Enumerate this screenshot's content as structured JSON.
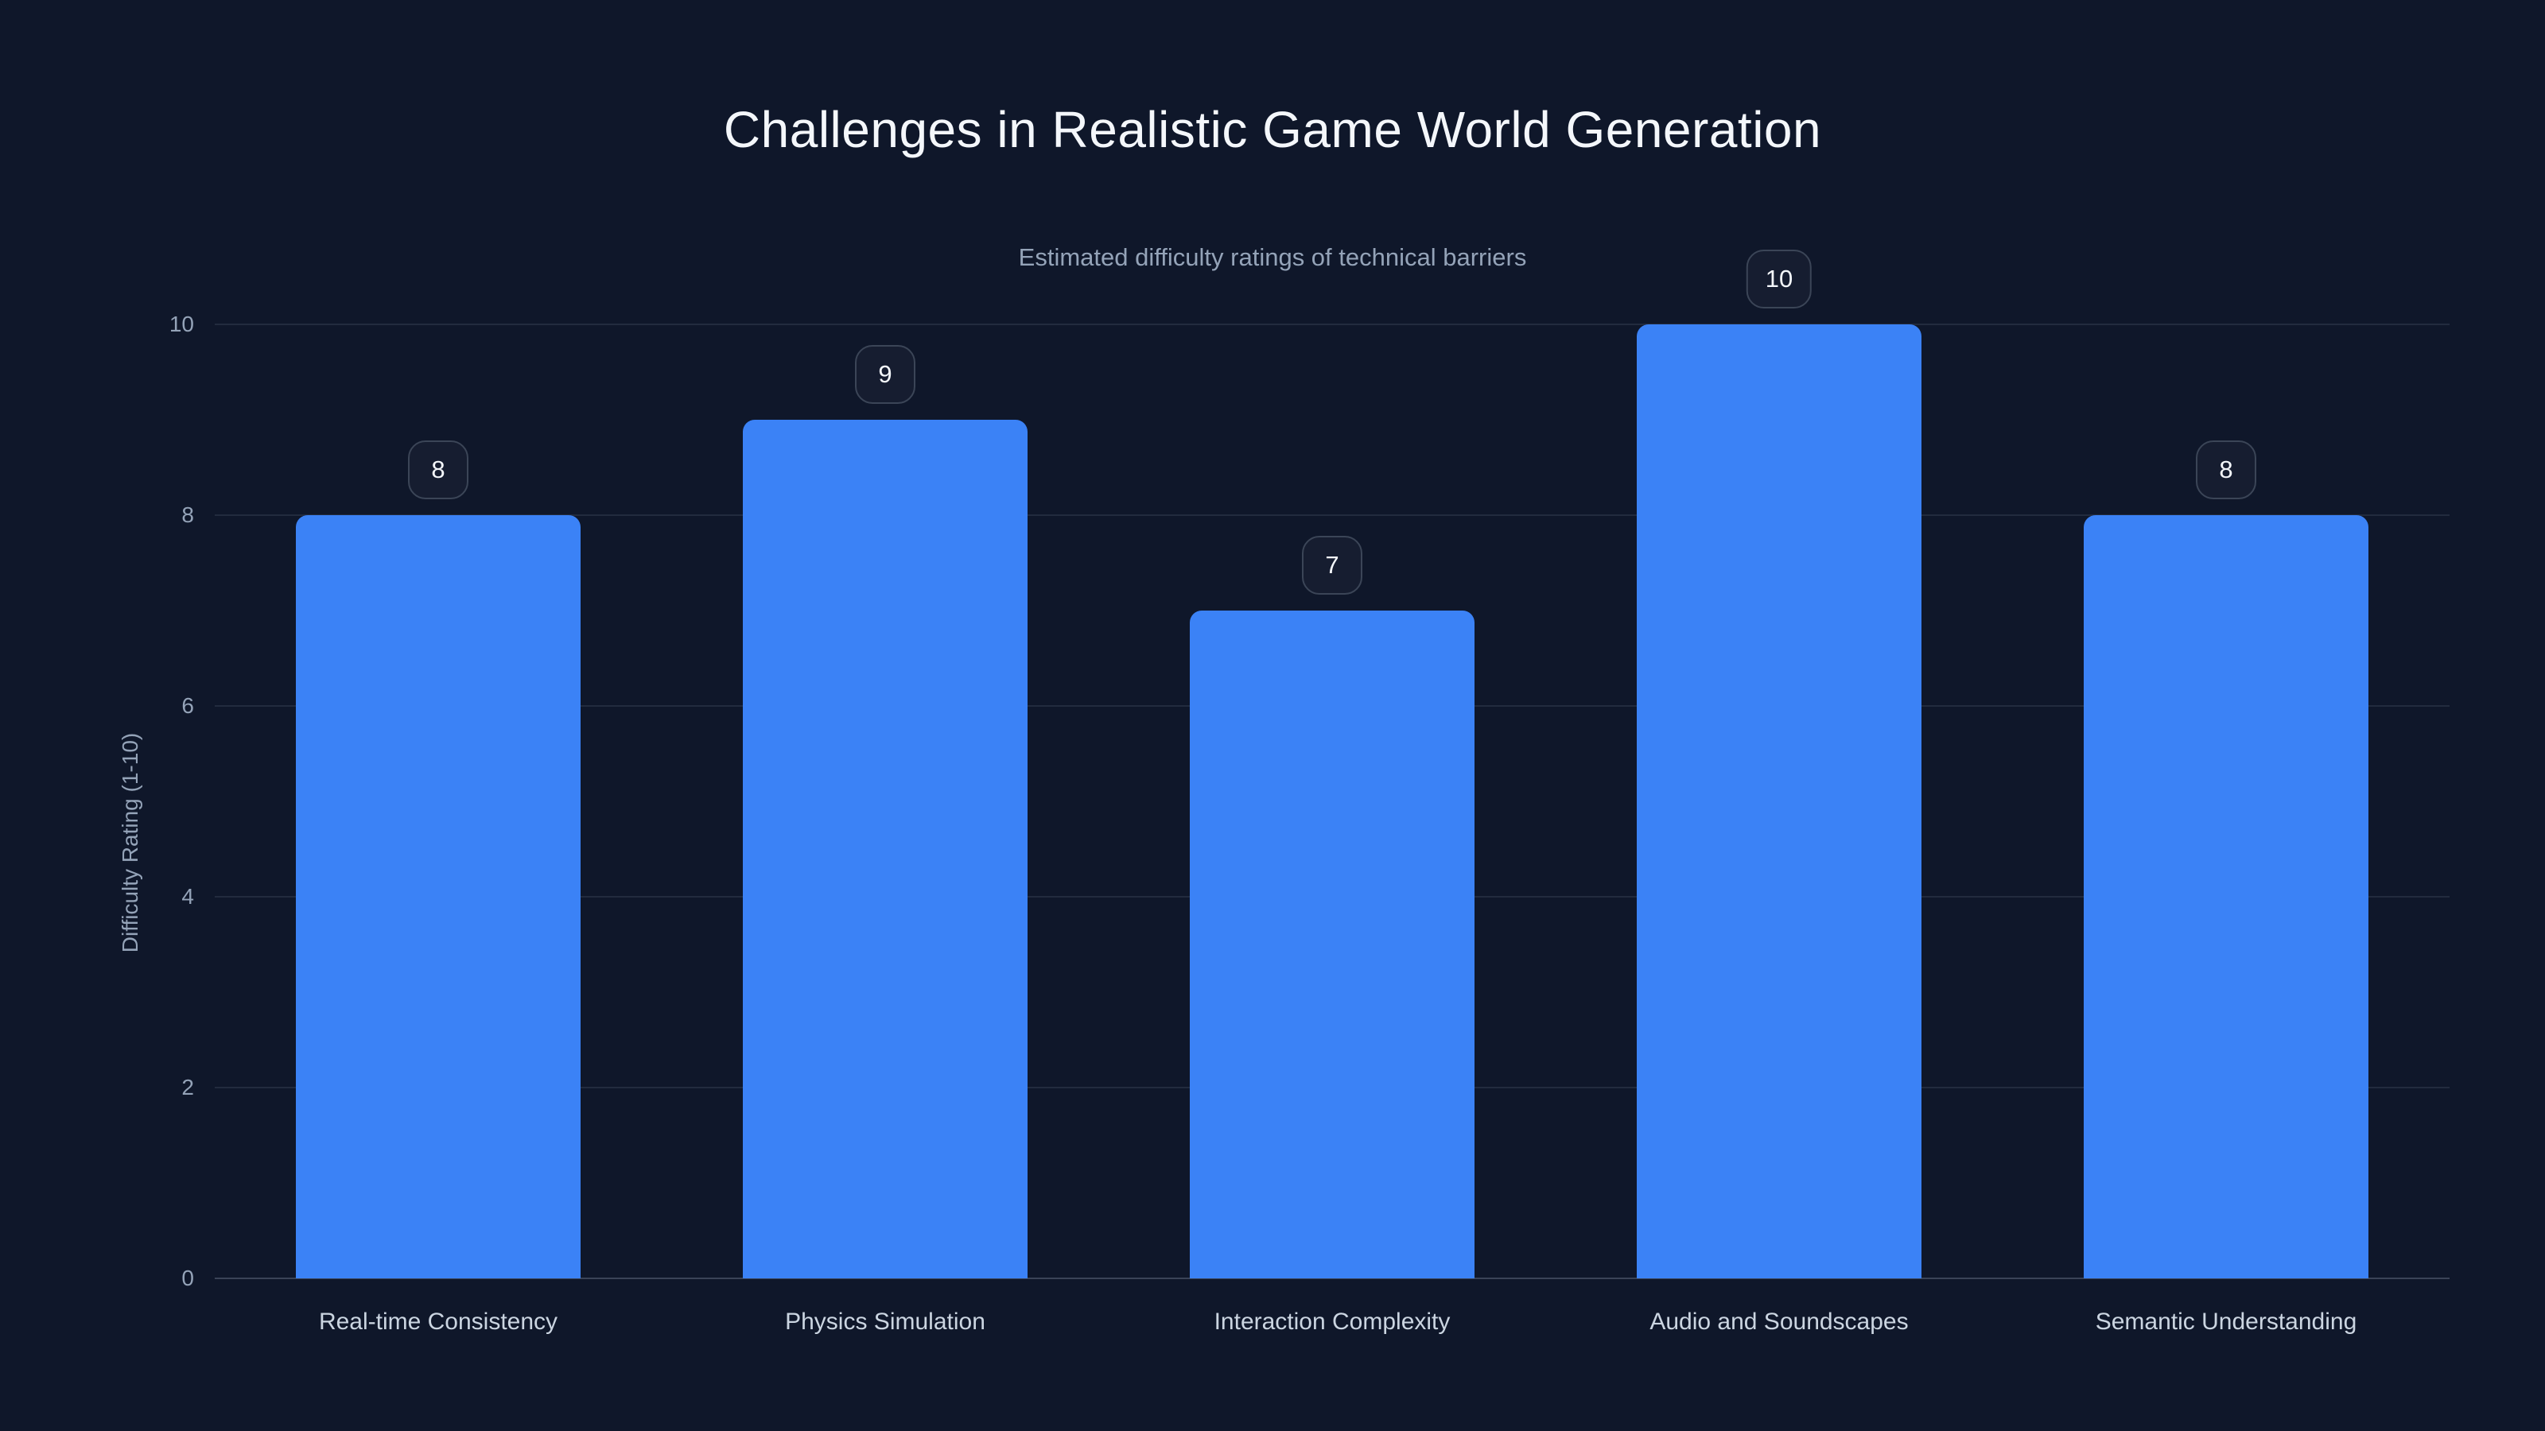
{
  "page": {
    "title": "Challenges in Realistic Game World Generation",
    "subtitle": "Estimated difficulty ratings of technical barriers"
  },
  "chart_data": {
    "type": "bar",
    "title": "Challenges in Realistic Game World Generation",
    "subtitle": "Estimated difficulty ratings of technical barriers",
    "categories": [
      "Real-time Consistency",
      "Physics Simulation",
      "Interaction Complexity",
      "Audio and Soundscapes",
      "Semantic Understanding"
    ],
    "values": [
      8,
      9,
      7,
      10,
      8
    ],
    "value_labels": [
      "8",
      "9",
      "7",
      "10",
      "8"
    ],
    "xlabel": "",
    "ylabel": "Difficulty Rating (1-10)",
    "ylim": [
      0,
      10
    ],
    "yticks": [
      0,
      2,
      4,
      6,
      8,
      10
    ],
    "grid": true,
    "legend": false,
    "layout_hints": {
      "orientation": "vertical",
      "value_badges_above_bars": true,
      "rounded_bar_tops": true
    }
  },
  "colors": {
    "background": "#0f172a",
    "bar": "#3b82f6",
    "title_text": "#f4f7fb",
    "subtitle_text": "#94a3b8",
    "tick_text": "#94a3b8",
    "category_text": "#cbd5e1",
    "badge_border": "#3b4557",
    "badge_text": "#f4f7fb",
    "gridline": "rgba(148,163,184,0.15)",
    "baseline": "rgba(148,163,184,0.32)"
  }
}
